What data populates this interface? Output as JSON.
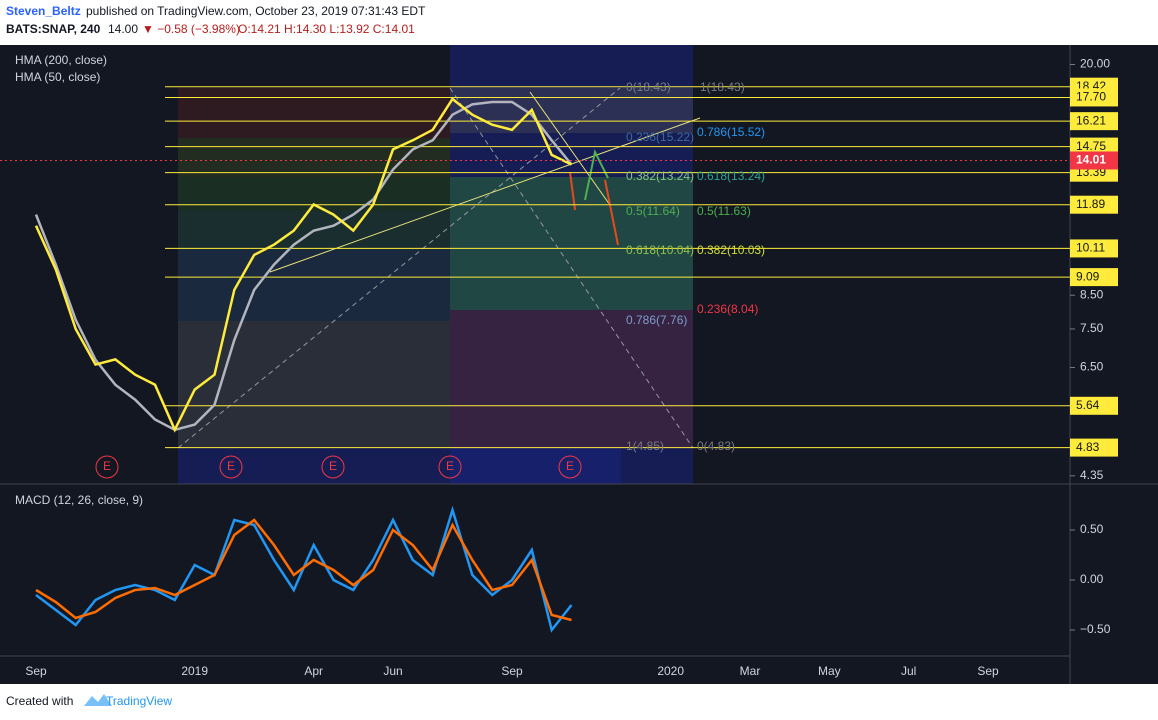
{
  "header": {
    "author": "Steven_Beltz",
    "published": "published on TradingView.com, October 23, 2019 07:31:43 EDT",
    "symbol": "BATS:SNAP, 240",
    "last": "14.00",
    "change": "▼ −0.58 (−3.98%)",
    "ohlc": "O:14.21 H:14.30 L:13.92 C:14.01"
  },
  "footer": {
    "created": "Created with",
    "brand": "TradingView"
  },
  "chart_data": [
    {
      "type": "line",
      "legend": "upper left",
      "log_scale": true,
      "categories": [
        "Sep",
        null,
        null,
        null,
        null,
        null,
        null,
        null,
        "2019",
        null,
        null,
        null,
        null,
        null,
        "Apr",
        null,
        null,
        null,
        "Jun",
        null,
        null,
        null,
        null,
        null,
        "Sep",
        null,
        null,
        null,
        null,
        null,
        null,
        null,
        "2020",
        null,
        null,
        null,
        "Mar",
        null,
        null,
        null,
        "May",
        null,
        null,
        null,
        "Jul",
        null,
        null,
        null,
        "Sep"
      ],
      "series": [
        {
          "name": "HMA (200, close)",
          "color": "#b2b5be",
          "values": [
            11.46,
            9.52,
            7.76,
            6.69,
            6.1,
            5.77,
            5.36,
            5.16,
            5.26,
            5.66,
            7.2,
            8.67,
            9.52,
            10.25,
            10.8,
            11.0,
            11.46,
            12.12,
            13.55,
            14.6,
            15.1,
            16.6,
            17.25,
            17.4,
            17.4,
            16.6,
            15.1,
            13.8,
            null,
            null,
            null,
            null,
            null,
            null,
            null,
            null,
            null,
            null,
            null,
            null,
            null,
            null,
            null,
            null,
            null,
            null,
            null,
            null,
            null
          ]
        },
        {
          "name": "HMA (50, close)",
          "color": "#ffeb3b",
          "values": [
            11.0,
            9.35,
            7.5,
            6.57,
            6.7,
            6.33,
            6.1,
            5.16,
            5.99,
            6.33,
            8.67,
            9.87,
            10.25,
            10.8,
            11.9,
            11.46,
            10.8,
            11.9,
            14.6,
            15.1,
            15.7,
            17.6,
            16.6,
            16.0,
            15.7,
            16.9,
            14.3,
            13.8,
            null,
            null,
            null,
            null,
            null,
            null,
            null,
            null,
            null,
            null,
            null,
            null,
            null,
            null,
            null,
            null,
            null,
            null,
            null,
            null,
            null
          ]
        }
      ],
      "ylim": [
        4.22,
        21.5
      ],
      "yticks": [
        {
          "value": 20,
          "label": "20.00"
        },
        {
          "value": 8.5,
          "label": "8.50"
        },
        {
          "value": 7.5,
          "label": "7.50"
        },
        {
          "value": 6.5,
          "label": "6.50"
        },
        {
          "value": 4.35,
          "label": "4.35"
        }
      ],
      "levels": [
        18.42,
        {
          "value": 17.7,
          "label": "17.70"
        },
        16.21,
        14.75,
        13.39,
        11.89,
        10.11,
        9.09,
        5.64,
        4.83
      ],
      "level_color": "#ffeb3b",
      "last_price": 14.01,
      "last_price_color": "#f23645",
      "annotations": [
        {
          "text": "0(18.43)",
          "color": "#787b86"
        },
        {
          "text": "1(18.43)",
          "color": "#787b86"
        },
        {
          "text": "0.236(15.22)",
          "color": "#3d6a9e"
        },
        {
          "text": "0.786(15.52)",
          "color": "#2196f3"
        },
        {
          "text": "0.382(13.24)",
          "color": "#81c784"
        },
        {
          "text": "0.618(13.24)",
          "color": "#26a69a"
        },
        {
          "text": "0.5(11.64)",
          "color": "#4caf50"
        },
        {
          "text": "0.5(11.63)",
          "color": "#4caf50"
        },
        {
          "text": "0.618(10.04)",
          "color": "#8bc34a"
        },
        {
          "text": "0.382(10.03)",
          "color": "#cddc39"
        },
        {
          "text": "0.236(8.04)",
          "color": "#f23645"
        },
        {
          "text": "0.786(7.76)",
          "color": "#7e9ccc"
        },
        {
          "text": "1(4.85)",
          "color": "#787b86"
        },
        {
          "text": "0(4.83)",
          "color": "#787b86"
        }
      ],
      "events": [
        "E",
        "E",
        "E",
        "E",
        "E"
      ]
    },
    {
      "type": "line",
      "title": "MACD (12, 26, close, 9)",
      "series": [
        {
          "color": "#2196f3",
          "values": [
            -0.15,
            -0.3,
            -0.45,
            -0.2,
            -0.1,
            -0.05,
            -0.1,
            -0.2,
            0.15,
            0.05,
            0.6,
            0.55,
            0.2,
            -0.1,
            0.35,
            0,
            -0.1,
            0.2,
            0.6,
            0.2,
            0.05,
            0.7,
            0.05,
            -0.15,
            0,
            0.3,
            -0.5,
            -0.25
          ]
        },
        {
          "color": "#ff6d00",
          "values": [
            -0.1,
            -0.22,
            -0.38,
            -0.32,
            -0.18,
            -0.1,
            -0.08,
            -0.15,
            -0.05,
            0.05,
            0.45,
            0.6,
            0.35,
            0.05,
            0.2,
            0.1,
            -0.05,
            0.1,
            0.5,
            0.35,
            0.1,
            0.55,
            0.2,
            -0.1,
            -0.05,
            0.2,
            -0.35,
            -0.4
          ]
        }
      ],
      "ylim": [
        -0.76,
        0.94
      ],
      "yticks": [
        {
          "value": 0.5,
          "label": "0.50"
        },
        {
          "value": 0,
          "label": "0.00"
        },
        {
          "value": -0.5,
          "label": "−0.50"
        }
      ]
    }
  ]
}
